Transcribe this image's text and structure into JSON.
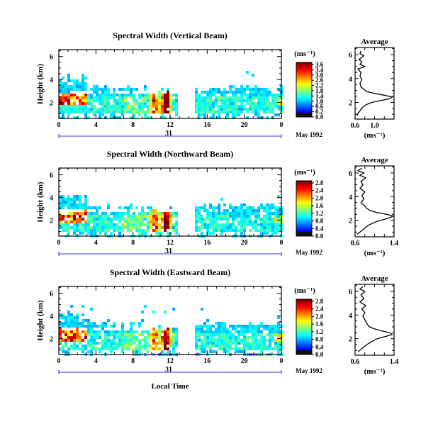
{
  "common": {
    "y_label": "Height (km)",
    "unit_label": "(ms⁻¹)",
    "date_label": "May 1992",
    "day_label": "31",
    "x_axis_label": "Local Time",
    "avg_title": "Average",
    "x_ticks": [
      "0",
      "4",
      "8",
      "12",
      "16",
      "20",
      "0"
    ],
    "y_ticks": [
      "2",
      "4",
      "6"
    ]
  },
  "chart_data": [
    {
      "type": "heatmap",
      "title": "Spectral Width (Vertical Beam)",
      "ylabel": "Height (km)",
      "xlim": [
        0,
        24
      ],
      "ylim": [
        0.6,
        6.6
      ],
      "colorbar_ticks": [
        "3.6",
        "3.4",
        "3.0",
        "2.6",
        "2.2",
        "1.8",
        "1.4",
        "1.0",
        "0.6",
        "0.2",
        "0.0"
      ],
      "data_gap": [
        13.0,
        14.6
      ],
      "average_profile": {
        "title": "Average",
        "xlim": [
          0.6,
          1.4
        ],
        "xticks": [
          "0.6",
          "1.0"
        ],
        "xlabel": "(ms⁻¹)",
        "yticks": [
          "2",
          "4",
          "6"
        ],
        "points": [
          [
            0.72,
            6.3
          ],
          [
            0.7,
            6.1
          ],
          [
            0.78,
            5.9
          ],
          [
            0.68,
            5.6
          ],
          [
            0.74,
            5.4
          ],
          [
            0.7,
            5.2
          ],
          [
            0.8,
            5.0
          ],
          [
            0.66,
            4.8
          ],
          [
            0.72,
            4.5
          ],
          [
            0.7,
            4.2
          ],
          [
            0.74,
            3.9
          ],
          [
            0.7,
            3.6
          ],
          [
            0.72,
            3.3
          ],
          [
            0.78,
            3.1
          ],
          [
            0.84,
            2.9
          ],
          [
            1.0,
            2.75
          ],
          [
            1.2,
            2.6
          ],
          [
            1.36,
            2.45
          ],
          [
            1.3,
            2.3
          ],
          [
            1.12,
            2.15
          ],
          [
            0.95,
            2.0
          ],
          [
            0.85,
            1.85
          ],
          [
            0.78,
            1.7
          ],
          [
            0.74,
            1.5
          ],
          [
            0.7,
            1.3
          ],
          [
            0.66,
            1.1
          ],
          [
            0.64,
            0.9
          ]
        ]
      }
    },
    {
      "type": "heatmap",
      "title": "Spectral Width (Northward Beam)",
      "ylabel": "Height (km)",
      "xlim": [
        0,
        24
      ],
      "ylim": [
        0.6,
        6.6
      ],
      "colorbar_ticks": [
        "2.8",
        "2.4",
        "2.0",
        "1.6",
        "1.2",
        "0.8",
        "0.4",
        "0.0"
      ],
      "data_gap": [
        13.0,
        14.6
      ],
      "average_profile": {
        "title": "Average",
        "xlim": [
          0.6,
          1.4
        ],
        "xticks": [
          "0.6",
          "1.4"
        ],
        "xlabel": "(ms⁻¹)",
        "yticks": [
          "2",
          "4",
          "6"
        ],
        "points": [
          [
            0.74,
            6.4
          ],
          [
            0.66,
            6.2
          ],
          [
            0.78,
            6.0
          ],
          [
            0.7,
            5.8
          ],
          [
            0.82,
            5.6
          ],
          [
            0.72,
            5.3
          ],
          [
            0.76,
            5.0
          ],
          [
            0.7,
            4.7
          ],
          [
            0.8,
            4.4
          ],
          [
            0.74,
            4.1
          ],
          [
            0.78,
            3.8
          ],
          [
            0.72,
            3.5
          ],
          [
            0.8,
            3.2
          ],
          [
            0.84,
            3.0
          ],
          [
            0.92,
            2.8
          ],
          [
            1.05,
            2.65
          ],
          [
            1.25,
            2.5
          ],
          [
            1.38,
            2.35
          ],
          [
            1.3,
            2.2
          ],
          [
            1.18,
            2.05
          ],
          [
            1.05,
            1.9
          ],
          [
            0.96,
            1.75
          ],
          [
            0.88,
            1.6
          ],
          [
            0.82,
            1.4
          ],
          [
            0.76,
            1.2
          ],
          [
            0.7,
            1.0
          ],
          [
            0.64,
            0.8
          ]
        ]
      }
    },
    {
      "type": "heatmap",
      "title": "Spectral Width (Eastward Beam)",
      "ylabel": "Height (km)",
      "xlabel": "Local Time",
      "xlim": [
        0,
        24
      ],
      "ylim": [
        0.6,
        6.6
      ],
      "colorbar_ticks": [
        "2.8",
        "2.4",
        "2.0",
        "1.6",
        "1.2",
        "0.8",
        "0.4",
        "0.0"
      ],
      "data_gap": [
        13.0,
        14.6
      ],
      "average_profile": {
        "title": "Average",
        "xlim": [
          0.6,
          1.4
        ],
        "xticks": [
          "0.6",
          "1.4"
        ],
        "xlabel": "(ms⁻¹)",
        "yticks": [
          "2",
          "4",
          "6"
        ],
        "points": [
          [
            0.76,
            6.4
          ],
          [
            0.7,
            6.2
          ],
          [
            0.8,
            6.0
          ],
          [
            0.72,
            5.7
          ],
          [
            0.78,
            5.4
          ],
          [
            0.7,
            5.1
          ],
          [
            0.82,
            4.8
          ],
          [
            0.74,
            4.5
          ],
          [
            0.8,
            4.2
          ],
          [
            0.76,
            3.9
          ],
          [
            0.8,
            3.6
          ],
          [
            0.84,
            3.3
          ],
          [
            0.88,
            3.05
          ],
          [
            0.98,
            2.85
          ],
          [
            1.15,
            2.65
          ],
          [
            1.32,
            2.5
          ],
          [
            1.36,
            2.35
          ],
          [
            1.24,
            2.2
          ],
          [
            1.1,
            2.05
          ],
          [
            1.0,
            1.9
          ],
          [
            0.92,
            1.7
          ],
          [
            0.84,
            1.5
          ],
          [
            0.78,
            1.3
          ],
          [
            0.72,
            1.1
          ],
          [
            0.66,
            0.9
          ]
        ]
      }
    }
  ]
}
